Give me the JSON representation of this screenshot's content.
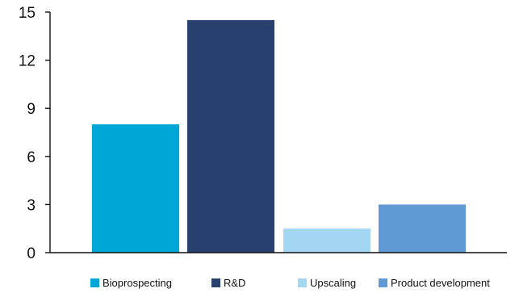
{
  "chart_data": {
    "type": "bar",
    "categories": [
      "Bioprospecting",
      "R&D",
      "Upscaling",
      "Product development"
    ],
    "values": [
      8,
      14.5,
      1.5,
      3
    ],
    "colors": [
      "#00a6d6",
      "#27406e",
      "#a2d6f2",
      "#5f9ad4"
    ],
    "ylim": [
      0,
      15
    ],
    "yticks": [
      "0",
      "3",
      "6",
      "9",
      "12",
      "15"
    ],
    "grid": false,
    "legend_position": "bottom"
  }
}
